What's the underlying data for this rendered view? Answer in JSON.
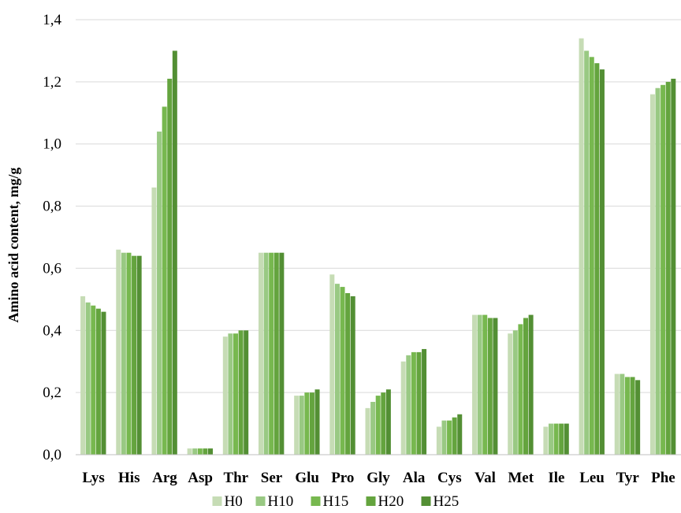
{
  "chart_data": {
    "type": "bar",
    "title": "",
    "xlabel": "",
    "ylabel": "Amino acid content, mg/g",
    "ylim": [
      0,
      1.4
    ],
    "yticks": [
      "0,0",
      "0,2",
      "0,4",
      "0,6",
      "0,8",
      "1,0",
      "1,2",
      "1,4"
    ],
    "grid": true,
    "legend": "bottom",
    "categories": [
      "Lys",
      "His",
      "Arg",
      "Asp",
      "Thr",
      "Ser",
      "Glu",
      "Pro",
      "Gly",
      "Ala",
      "Cys",
      "Val",
      "Met",
      "Ile",
      "Leu",
      "Tyr",
      "Phe"
    ],
    "series": [
      {
        "name": "H0",
        "color": "#c6dcb5",
        "values": [
          0.51,
          0.66,
          0.86,
          0.02,
          0.38,
          0.65,
          0.19,
          0.58,
          0.15,
          0.3,
          0.09,
          0.45,
          0.39,
          0.09,
          1.34,
          0.26,
          1.16
        ]
      },
      {
        "name": "H10",
        "color": "#99c983",
        "values": [
          0.49,
          0.65,
          1.04,
          0.02,
          0.39,
          0.65,
          0.19,
          0.55,
          0.17,
          0.32,
          0.11,
          0.45,
          0.4,
          0.1,
          1.3,
          0.26,
          1.18
        ]
      },
      {
        "name": "H15",
        "color": "#77b84f",
        "values": [
          0.48,
          0.65,
          1.12,
          0.02,
          0.39,
          0.65,
          0.2,
          0.54,
          0.19,
          0.33,
          0.11,
          0.45,
          0.42,
          0.1,
          1.28,
          0.25,
          1.19
        ]
      },
      {
        "name": "H20",
        "color": "#64a43e",
        "values": [
          0.47,
          0.64,
          1.21,
          0.02,
          0.4,
          0.65,
          0.2,
          0.52,
          0.2,
          0.33,
          0.12,
          0.44,
          0.44,
          0.1,
          1.26,
          0.25,
          1.2
        ]
      },
      {
        "name": "H25",
        "color": "#538f34",
        "values": [
          0.46,
          0.64,
          1.3,
          0.02,
          0.4,
          0.65,
          0.21,
          0.51,
          0.21,
          0.34,
          0.13,
          0.44,
          0.45,
          0.1,
          1.24,
          0.24,
          1.21
        ]
      }
    ]
  }
}
